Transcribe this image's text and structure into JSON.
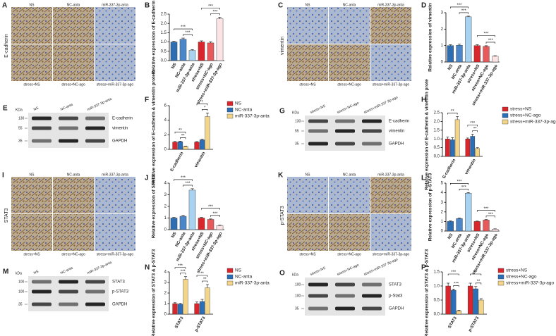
{
  "chart_data": [
    {
      "type": "bar",
      "panel": "B",
      "ylabel": "Relative expression of E-cadherin",
      "categories": [
        "NS",
        "NC-anta",
        "miR-337-3p-anta",
        "stress+NS",
        "stress+NC-ago",
        "stress+miR-337-3p-ago"
      ],
      "values": [
        1.0,
        1.15,
        0.55,
        1.0,
        0.95,
        2.25
      ],
      "errors": [
        0.04,
        0.06,
        0.04,
        0.06,
        0.06,
        0.08
      ],
      "colors": [
        "#2f6db3",
        "#4a86c8",
        "#a9d2f0",
        "#d9262c",
        "#e8595c",
        "#fde4e4"
      ],
      "ylim": [
        0,
        2.5
      ],
      "yticks": [
        {
          "value": 0,
          "label": "0.0"
        },
        0.5,
        {
          "value": 1,
          "label": "1.0"
        },
        1.5,
        {
          "value": 2,
          "label": "2.0"
        },
        2.5
      ],
      "significance": [
        "***",
        "***",
        "***",
        "***"
      ]
    },
    {
      "type": "bar",
      "panel": "D",
      "ylabel": "Relative expression of vimentin",
      "categories": [
        "NS",
        "NC-anta",
        "miR-337-3p-anta",
        "stress+NS",
        "stress+NC-ago",
        "stress+miR-337-3p-ago"
      ],
      "values": [
        1.0,
        1.02,
        2.75,
        1.0,
        0.95,
        0.35
      ],
      "errors": [
        0.05,
        0.06,
        0.04,
        0.05,
        0.04,
        0.03
      ],
      "colors": [
        "#2f6db3",
        "#4a86c8",
        "#a9d2f0",
        "#d9262c",
        "#e8595c",
        "#fde4e4"
      ],
      "ylim": [
        0,
        3
      ],
      "yticks": [
        0,
        1,
        2,
        3
      ],
      "significance": [
        "***",
        "***",
        "***",
        "***"
      ]
    },
    {
      "type": "bar",
      "panel": "F",
      "ylabel": "Relative expression of E-cadherin & vimentin protein",
      "categories": [
        "E-cadherin",
        "vimentin"
      ],
      "series": [
        {
          "name": "NS",
          "color": "#d9262c",
          "values": [
            1.0,
            1.0
          ],
          "errors": [
            0.08,
            0.06
          ]
        },
        {
          "name": "NC-anta",
          "color": "#2a6fb7",
          "values": [
            1.05,
            1.3
          ],
          "errors": [
            0.07,
            0.08
          ]
        },
        {
          "name": "miR-337-3p-anta",
          "color": "#f3d58a",
          "values": [
            0.4,
            4.5
          ],
          "errors": [
            0.05,
            0.5
          ]
        }
      ],
      "ylim": [
        0,
        6
      ],
      "yticks": [
        0,
        2,
        4,
        6
      ],
      "significance": [
        "**",
        "**",
        "*",
        "*"
      ]
    },
    {
      "type": "bar",
      "panel": "H",
      "ylabel": "Relative expression of E-cadherin & vimentin prote",
      "categories": [
        "E-cadherin",
        "vimentin"
      ],
      "series": [
        {
          "name": "stress+NS",
          "color": "#d9262c",
          "values": [
            1.0,
            1.0
          ],
          "errors": [
            0.1,
            0.05
          ]
        },
        {
          "name": "stress+NC-ago",
          "color": "#2a6fb7",
          "values": [
            0.95,
            1.15
          ],
          "errors": [
            0.12,
            0.12
          ]
        },
        {
          "name": "stress+miR-337-3p-ago",
          "color": "#f3d58a",
          "values": [
            2.1,
            0.45
          ],
          "errors": [
            0.18,
            0.05
          ]
        }
      ],
      "ylim": [
        0,
        2.5
      ],
      "yticks": [
        {
          "value": 0,
          "label": "0.0"
        },
        0.5,
        {
          "value": 1,
          "label": "1.0"
        },
        1.5,
        {
          "value": 2,
          "label": "2.0"
        },
        2.5
      ],
      "significance": [
        "**",
        "***",
        "**"
      ]
    },
    {
      "type": "bar",
      "panel": "J",
      "ylabel": "Relative expression of STAT3",
      "categories": [
        "NS",
        "NC-anta",
        "miR-337-3p-anta",
        "stress+NS",
        "stress+NC-ago",
        "stress+miR-337-3p-ago"
      ],
      "values": [
        1.0,
        1.15,
        3.4,
        1.0,
        0.88,
        0.35
      ],
      "errors": [
        0.05,
        0.08,
        0.12,
        0.05,
        0.04,
        0.04
      ],
      "colors": [
        "#2f6db3",
        "#4a86c8",
        "#a9d2f0",
        "#d9262c",
        "#e8595c",
        "#fde4e4"
      ],
      "ylim": [
        0,
        4
      ],
      "yticks": [
        0,
        1,
        2,
        3,
        4
      ],
      "significance": [
        "***",
        "***",
        "***",
        "***"
      ]
    },
    {
      "type": "bar",
      "panel": "L",
      "ylabel": "Relative expression of p-STAT3",
      "categories": [
        "NS",
        "NC-anta",
        "miR-337-3p-anta",
        "stress+NS",
        "stress+NC-ago",
        "stress+miR-337-3p-ago"
      ],
      "values": [
        1.0,
        1.3,
        3.95,
        1.0,
        1.15,
        0.2
      ],
      "errors": [
        0.06,
        0.06,
        0.07,
        0.04,
        0.05,
        0.03
      ],
      "colors": [
        "#2f6db3",
        "#4a86c8",
        "#a9d2f0",
        "#d9262c",
        "#e8595c",
        "#fde4e4"
      ],
      "ylim": [
        0,
        5
      ],
      "yticks": [
        0,
        1,
        2,
        3,
        4,
        5
      ],
      "significance": [
        "***",
        "***",
        "***",
        "***"
      ]
    },
    {
      "type": "bar",
      "panel": "N",
      "ylabel": "Relative expression of STAT3 & p-STAT3",
      "categories": [
        "STAT3",
        "p-STAT3"
      ],
      "series": [
        {
          "name": "NS",
          "color": "#d9262c",
          "values": [
            1.0,
            1.0
          ],
          "errors": [
            0.08,
            0.15
          ]
        },
        {
          "name": "NC-anta",
          "color": "#2a6fb7",
          "values": [
            0.95,
            1.2
          ],
          "errors": [
            0.06,
            0.2
          ]
        },
        {
          "name": "miR-337-3p-anta",
          "color": "#f3d58a",
          "values": [
            3.3,
            2.5
          ],
          "errors": [
            0.25,
            0.3
          ]
        }
      ],
      "ylim": [
        0,
        4
      ],
      "yticks": [
        0,
        1,
        2,
        3,
        4
      ],
      "significance": [
        "***",
        "***",
        "**",
        "**"
      ]
    },
    {
      "type": "bar",
      "panel": "P",
      "ylabel": "Relative expression of STAT3 & p-STAT3",
      "categories": [
        "STAT3",
        "p-STAT3"
      ],
      "series": [
        {
          "name": "stress+NS",
          "color": "#d9262c",
          "values": [
            1.0,
            1.0
          ],
          "errors": [
            0.1,
            0.1
          ]
        },
        {
          "name": "stress+NC-ago",
          "color": "#2a6fb7",
          "values": [
            0.85,
            0.9
          ],
          "errors": [
            0.04,
            0.08
          ]
        },
        {
          "name": "stress+miR-337-3p-ago",
          "color": "#f3d58a",
          "values": [
            0.12,
            0.5
          ],
          "errors": [
            0.02,
            0.05
          ]
        }
      ],
      "ylim": [
        0,
        1.5
      ],
      "yticks": [
        {
          "value": 0,
          "label": "0.0"
        },
        0.5,
        {
          "value": 1,
          "label": "1.0"
        },
        1.5
      ],
      "significance": [
        "***",
        "***",
        "**",
        "**"
      ]
    }
  ],
  "image_panels": [
    {
      "panel": "A",
      "stain": "E-cadherin",
      "top_labels": [
        "NS",
        "NC-anta",
        "miR-337-3p-anta"
      ],
      "bottom_labels": [
        "stress+NS",
        "stress+NC-ago",
        "stress+miR-337-3p-ago"
      ]
    },
    {
      "panel": "C",
      "stain": "vimentin",
      "top_labels": [
        "NS",
        "NC-anta",
        "miR-337-3p-anta"
      ],
      "bottom_labels": [
        "stress+NS",
        "stress+NC-ago",
        "stress+miR-337-3p-ago"
      ]
    },
    {
      "panel": "I",
      "stain": "STAT3",
      "top_labels": [
        "NS",
        "NC-anta",
        "miR-337-3p-anta"
      ],
      "bottom_labels": [
        "stress+NS",
        "stress+NC-ago",
        "stress+miR-337-3p-ago"
      ]
    },
    {
      "panel": "K",
      "stain": "p-STAT3",
      "top_labels": [
        "NS",
        "NC-anta",
        "miR-337-3p-anta"
      ],
      "bottom_labels": [
        "stress+NS",
        "stress+NC-ago",
        "stress+miR-337-3p-ago"
      ]
    }
  ],
  "blot_panels": [
    {
      "panel": "E",
      "unit": "KDa",
      "markers": [
        "130",
        "55",
        "35"
      ],
      "lanes": [
        "NS",
        "NC-anta",
        "miR-337-3p-anta"
      ],
      "bands": [
        "E-cadherin",
        "vimentin",
        "GAPDH"
      ]
    },
    {
      "panel": "G",
      "unit": "KDa",
      "markers": [
        "130",
        "55",
        "35"
      ],
      "lanes": [
        "stress+NS",
        "stress+NC-ago",
        "stress+miR-337-3p-ago"
      ],
      "bands": [
        "E-cadherin",
        "vimentin",
        "GAPDH"
      ]
    },
    {
      "panel": "M",
      "unit": "kDa",
      "markers": [
        "100",
        "100",
        "35"
      ],
      "lanes": [
        "NS",
        "NC-anta",
        "miR-337-3p-anta"
      ],
      "bands": [
        "STAT3",
        "p-STAT3",
        "GAPDH"
      ]
    },
    {
      "panel": "O",
      "unit": "kDa",
      "markers": [
        "100",
        "100",
        "35"
      ],
      "lanes": [
        "stress+NS",
        "stress+NC-ago",
        "stress+miR-337-3p-ago"
      ],
      "bands": [
        "STAT3",
        "p-Stat3",
        "GAPDH"
      ]
    }
  ]
}
